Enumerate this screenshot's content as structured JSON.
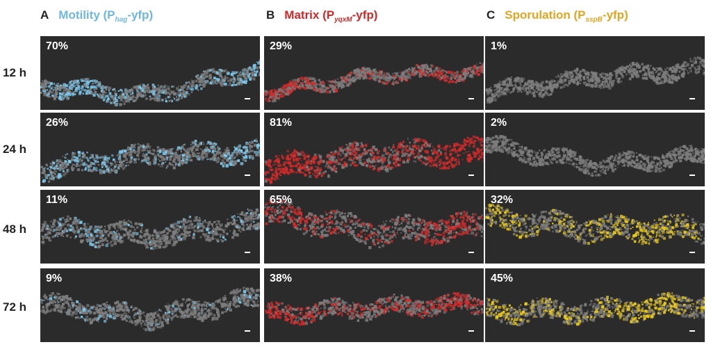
{
  "columns": [
    {
      "letter": "A",
      "title": "Motility (P",
      "sub": "hag",
      "suffix": "-yfp)",
      "color": "#6fb7e0"
    },
    {
      "letter": "B",
      "title": "Matrix (P",
      "sub": "yqxM",
      "suffix": "-yfp)",
      "color": "#cc2a2a"
    },
    {
      "letter": "C",
      "title": "Sporulation (P",
      "sub": "sspB",
      "suffix": "-yfp)",
      "color": "#e0a623"
    }
  ],
  "rows": [
    {
      "label": "12 h",
      "values": [
        "70%",
        "29%",
        "1%"
      ]
    },
    {
      "label": "24 h",
      "values": [
        "26%",
        "81%",
        "2%"
      ]
    },
    {
      "label": "48 h",
      "values": [
        "11%",
        "65%",
        "32%"
      ]
    },
    {
      "label": "72 h",
      "values": [
        "9%",
        "38%",
        "45%"
      ]
    }
  ],
  "colors": {
    "panel_background": "#2b2b2b",
    "biofilm_gray": "#7d7d7d",
    "motility_signal": "#7cc8ec",
    "matrix_signal": "#d42b2b",
    "sporulation_signal": "#e8c81c"
  }
}
